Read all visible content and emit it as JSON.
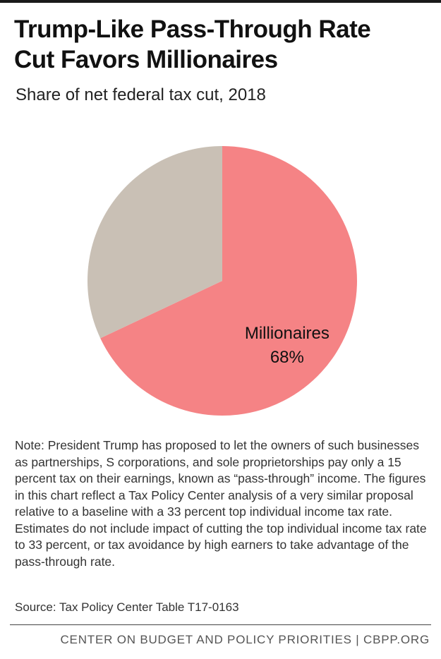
{
  "title_line1": "Trump-Like Pass-Through Rate",
  "title_line2": "Cut Favors Millionaires",
  "subtitle": "Share of net federal tax cut, 2018",
  "chart_data": {
    "type": "pie",
    "title": "Trump-Like Pass-Through Rate Cut Favors Millionaires",
    "subtitle": "Share of net federal tax cut, 2018",
    "slices": [
      {
        "label": "Millionaires",
        "value": 68,
        "value_label": "68%",
        "color": "#f58385"
      },
      {
        "label": "",
        "value": 32,
        "value_label": "",
        "color": "#c9c0b5"
      }
    ],
    "start_angle_deg": 0,
    "direction": "clockwise"
  },
  "note": "Note: President Trump has proposed to let the owners of such businesses as partnerships, S corporations, and sole proprietorships pay only a 15 percent tax on their earnings, known as “pass-through” income. The figures in this chart reflect a Tax Policy Center analysis of a very similar proposal relative to a baseline with a 33 percent top individual income tax rate.  Estimates do not include impact of cutting the top individual income tax rate to 33 percent, or tax avoidance by high earners to take advantage of the pass-through rate.",
  "source": "Source: Tax Policy Center Table T17-0163",
  "footer": "CENTER ON BUDGET AND POLICY PRIORITIES | CBPP.ORG"
}
